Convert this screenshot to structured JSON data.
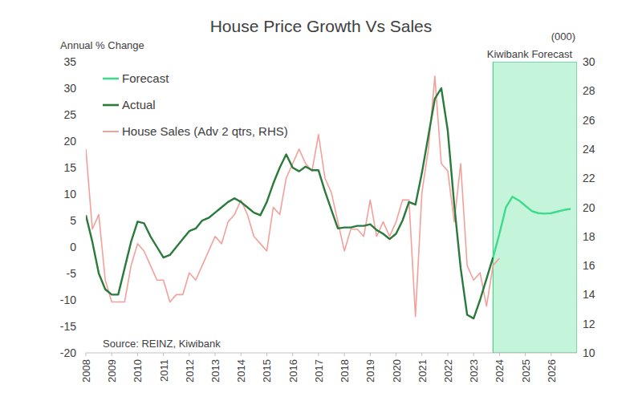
{
  "chart_data": {
    "type": "line",
    "title": "House Price Growth Vs Sales",
    "y_label": "Annual % Change",
    "y2_label": "(000)",
    "source": "Source: REINZ, Kiwibank",
    "xlim": [
      2008,
      2027
    ],
    "xticks": [
      2008,
      2009,
      2010,
      2011,
      2012,
      2013,
      2014,
      2015,
      2016,
      2017,
      2018,
      2019,
      2020,
      2021,
      2022,
      2023,
      2024,
      2025,
      2026
    ],
    "ylim": [
      -20,
      35
    ],
    "yticks": [
      -20,
      -15,
      -10,
      -5,
      0,
      5,
      10,
      15,
      20,
      25,
      30,
      35
    ],
    "y2lim": [
      10,
      30
    ],
    "y2ticks": [
      10,
      12,
      14,
      16,
      18,
      20,
      22,
      24,
      26,
      28,
      30
    ],
    "grid": false,
    "legend": "top-left",
    "shaded_region": {
      "label": "Kiwibank Forecast",
      "color": "#c4f5da",
      "x": [
        2023.75,
        2027
      ]
    },
    "series": [
      {
        "name": "Forecast",
        "color": "#3ddc8c",
        "x": [
          2023.75,
          2024,
          2024.25,
          2024.5,
          2024.75,
          2025,
          2025.25,
          2025.5,
          2025.75,
          2026,
          2026.25,
          2026.5,
          2026.75
        ],
        "values": [
          -2,
          2.5,
          7.5,
          9.5,
          8.8,
          7.8,
          6.8,
          6.4,
          6.3,
          6.4,
          6.7,
          7,
          7.2
        ]
      },
      {
        "name": "Actual",
        "color": "#2a7a3b",
        "x": [
          2008,
          2008.25,
          2008.5,
          2008.75,
          2009,
          2009.25,
          2009.5,
          2009.75,
          2010,
          2010.25,
          2010.5,
          2010.75,
          2011,
          2011.25,
          2011.5,
          2011.75,
          2012,
          2012.25,
          2012.5,
          2012.75,
          2013,
          2013.25,
          2013.5,
          2013.75,
          2014,
          2014.25,
          2014.5,
          2014.75,
          2015,
          2015.25,
          2015.5,
          2015.75,
          2016,
          2016.25,
          2016.5,
          2016.75,
          2017,
          2017.25,
          2017.5,
          2017.75,
          2018,
          2018.25,
          2018.5,
          2018.75,
          2019,
          2019.25,
          2019.5,
          2019.75,
          2020,
          2020.25,
          2020.5,
          2020.75,
          2021,
          2021.25,
          2021.5,
          2021.75,
          2022,
          2022.25,
          2022.5,
          2022.75,
          2023,
          2023.25,
          2023.5,
          2023.75
        ],
        "values": [
          6,
          1,
          -5,
          -8,
          -9,
          -9,
          -4,
          1,
          4.8,
          4.5,
          2,
          0,
          -2,
          -1.5,
          0,
          1.5,
          3,
          3.5,
          5,
          5.5,
          6.5,
          7.5,
          8.5,
          9.2,
          8.5,
          7.5,
          6.5,
          6,
          8.5,
          12,
          15,
          17.5,
          15,
          14.3,
          15.2,
          14.5,
          14.5,
          10.5,
          7,
          3.5,
          3.7,
          3.7,
          4,
          4,
          4.3,
          3.2,
          2.5,
          1.5,
          2.5,
          5,
          8.5,
          8,
          14,
          21,
          28,
          30,
          22,
          8,
          -4,
          -12.8,
          -13.5,
          -10,
          -6,
          -2
        ]
      },
      {
        "name": "House Sales (Adv 2 qtrs, RHS)",
        "color": "#f4a09a",
        "axis": "y2",
        "x": [
          2008,
          2008.25,
          2008.5,
          2008.75,
          2009,
          2009.25,
          2009.5,
          2009.75,
          2010,
          2010.25,
          2010.5,
          2010.75,
          2011,
          2011.25,
          2011.5,
          2011.75,
          2012,
          2012.25,
          2012.5,
          2012.75,
          2013,
          2013.25,
          2013.5,
          2013.75,
          2014,
          2014.25,
          2014.5,
          2014.75,
          2015,
          2015.25,
          2015.5,
          2015.75,
          2016,
          2016.25,
          2016.5,
          2016.75,
          2017,
          2017.25,
          2017.5,
          2017.75,
          2018,
          2018.25,
          2018.5,
          2018.75,
          2019,
          2019.25,
          2019.5,
          2019.75,
          2020,
          2020.25,
          2020.5,
          2020.75,
          2021,
          2021.25,
          2021.5,
          2021.75,
          2022,
          2022.25,
          2022.5,
          2022.75,
          2023,
          2023.25,
          2023.5,
          2023.75,
          2024
        ],
        "values": [
          24,
          18.5,
          19.5,
          15,
          13.5,
          13.5,
          13.5,
          16,
          17.5,
          17,
          16,
          15,
          15,
          13.5,
          14,
          14,
          15.5,
          15,
          16,
          17,
          18,
          17.5,
          19,
          19.5,
          20.5,
          19.5,
          18,
          17.5,
          17,
          20,
          19.5,
          22,
          23,
          24,
          23,
          22.5,
          25,
          22,
          21,
          19,
          17,
          18.5,
          18.5,
          18,
          20.5,
          18,
          19,
          18,
          19,
          20.5,
          20.5,
          12.5,
          21,
          24,
          29,
          23,
          22.5,
          19,
          23,
          16,
          15,
          15.5,
          13.2,
          16,
          16.5
        ]
      }
    ]
  }
}
